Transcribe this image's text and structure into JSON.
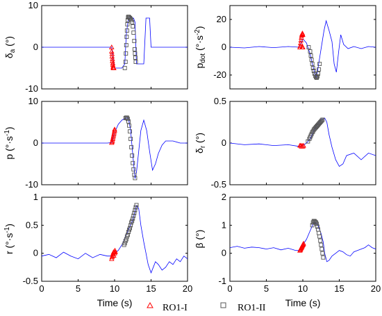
{
  "chart_data": [
    {
      "type": "line",
      "id": "delta_a",
      "ylabel": "δ_a (°)",
      "xlim": [
        0,
        20
      ],
      "ylim": [
        -10,
        10
      ],
      "xticks": [
        0,
        5,
        10,
        15,
        20
      ],
      "xtick_labels": [
        "",
        "",
        "",
        "",
        ""
      ],
      "yticks": [
        -10,
        0,
        10
      ],
      "ytick_labels": [
        "-10",
        "0",
        "10"
      ],
      "series": [
        {
          "style": "line",
          "color": "#0000ff",
          "x": [
            0,
            9.6,
            9.8,
            10.0,
            10.5,
            11.0,
            11.4,
            11.6,
            11.9,
            12.2,
            12.4,
            12.6,
            12.8,
            13.0,
            13.4,
            14.0,
            14.3,
            14.5,
            14.8,
            15.0,
            20
          ],
          "y": [
            0,
            0,
            -3,
            -5,
            -5,
            -5,
            -4,
            3,
            7,
            7,
            7,
            7,
            6,
            -4,
            -4,
            -4,
            7,
            7,
            7,
            0,
            0
          ]
        },
        {
          "name": "RO1-I",
          "style": "triangle",
          "color": "#ff0000",
          "x": [
            9.6,
            9.6,
            9.65,
            9.65,
            9.7,
            9.7,
            9.75,
            9.75,
            9.8,
            9.8,
            9.85,
            9.9
          ],
          "y": [
            0,
            -1,
            -1.6,
            -2.2,
            -2.8,
            -3.3,
            -3.8,
            -4.2,
            -4.6,
            -4.9,
            -5.0,
            -5.0
          ]
        },
        {
          "name": "RO1-II",
          "style": "square",
          "color": "#555555",
          "x": [
            11.4,
            11.5,
            11.55,
            11.6,
            11.65,
            11.7,
            11.75,
            11.8,
            11.85,
            11.9,
            12.0,
            12.1,
            12.2,
            12.3,
            12.4,
            12.5,
            12.6,
            12.7,
            12.75,
            12.8,
            12.85,
            12.9
          ],
          "y": [
            -5,
            -3.5,
            -1.5,
            0.5,
            2.5,
            4,
            5.5,
            6.5,
            7.2,
            7.3,
            7.2,
            7.0,
            6.8,
            6.5,
            6.0,
            5.0,
            3.5,
            1.5,
            -0.5,
            -1.5,
            -2.5,
            -3.5
          ]
        }
      ]
    },
    {
      "type": "line",
      "id": "p_dot",
      "ylabel": "p_dot (°·s^-2)",
      "xlim": [
        0,
        20
      ],
      "ylim": [
        -30,
        30
      ],
      "xticks": [
        0,
        5,
        10,
        15,
        20
      ],
      "xtick_labels": [
        "",
        "",
        "",
        "",
        ""
      ],
      "yticks": [
        -20,
        0,
        20
      ],
      "ytick_labels": [
        "-20",
        "0",
        "20"
      ],
      "series": [
        {
          "style": "line",
          "color": "#0000ff",
          "x": [
            0,
            2,
            4,
            6,
            8,
            9.5,
            10.0,
            10.5,
            11.0,
            11.5,
            11.8,
            12.0,
            12.3,
            12.6,
            12.9,
            13.2,
            13.6,
            14.0,
            14.3,
            14.6,
            14.9,
            15.2,
            15.6,
            16.2,
            17,
            18,
            19,
            20
          ],
          "y": [
            0,
            -0.5,
            0.5,
            -0.3,
            0.5,
            0,
            6,
            3,
            -5,
            -16,
            -22,
            -18,
            -8,
            2,
            12,
            19,
            12,
            4,
            -12,
            -18,
            -4,
            9,
            2,
            -1,
            0.5,
            -1,
            0.5,
            0
          ]
        },
        {
          "name": "RO1-I",
          "style": "triangle",
          "color": "#ff0000",
          "x": [
            9.6,
            9.65,
            9.7,
            9.75,
            9.8,
            9.85,
            9.9,
            9.95,
            10.0,
            10.0,
            9.9
          ],
          "y": [
            0,
            1,
            3,
            5,
            7,
            8.5,
            9.5,
            10,
            9,
            0,
            0
          ]
        },
        {
          "name": "RO1-II",
          "style": "square",
          "color": "#555555",
          "x": [
            10.8,
            11.0,
            11.1,
            11.2,
            11.3,
            11.4,
            11.5,
            11.6,
            11.7,
            11.8,
            11.9,
            12.0,
            12.1,
            12.2,
            12.3
          ],
          "y": [
            0,
            -3,
            -6,
            -9,
            -12,
            -15,
            -17,
            -19,
            -20.5,
            -21.5,
            -22,
            -21,
            -19,
            -16,
            -12
          ]
        }
      ]
    },
    {
      "type": "line",
      "id": "p",
      "ylabel": "p (°·s^-1)",
      "xlim": [
        0,
        20
      ],
      "ylim": [
        -10,
        10
      ],
      "xticks": [
        0,
        5,
        10,
        15,
        20
      ],
      "xtick_labels": [
        "",
        "",
        "",
        "",
        ""
      ],
      "yticks": [
        -10,
        0,
        10
      ],
      "ytick_labels": [
        "-10",
        "0",
        "10"
      ],
      "series": [
        {
          "style": "line",
          "color": "#0000ff",
          "x": [
            0,
            3,
            6,
            9,
            9.6,
            10.0,
            10.5,
            11.0,
            11.5,
            11.9,
            12.2,
            12.5,
            12.8,
            13.0,
            13.3,
            13.6,
            14.0,
            14.4,
            14.8,
            15.2,
            15.6,
            16.0,
            16.5,
            17,
            18,
            19,
            20
          ],
          "y": [
            0,
            0,
            0,
            0,
            0.1,
            2.5,
            4.5,
            5.5,
            6,
            6,
            3,
            -3,
            -8.5,
            -7,
            -2,
            3,
            5.5,
            3,
            -2,
            -6.5,
            -5,
            -2.5,
            -0.5,
            0.5,
            0.5,
            0,
            0
          ]
        },
        {
          "name": "RO1-I",
          "style": "triangle",
          "color": "#ff0000",
          "x": [
            9.6,
            9.65,
            9.7,
            9.75,
            9.8,
            9.85,
            9.9,
            9.95,
            10.0,
            10.0
          ],
          "y": [
            0.1,
            0.3,
            0.6,
            1.0,
            1.4,
            1.8,
            2.2,
            2.6,
            3.0,
            3.3
          ]
        },
        {
          "name": "RO1-II",
          "style": "square",
          "color": "#555555",
          "x": [
            11.5,
            11.6,
            11.7,
            11.8,
            11.9,
            12.0,
            12.1,
            12.2,
            12.3,
            12.4,
            12.5,
            12.6,
            12.7,
            12.8
          ],
          "y": [
            6,
            6.1,
            6.1,
            5.8,
            5.2,
            4.2,
            2.8,
            1.0,
            -1.0,
            -3.0,
            -4.8,
            -6.3,
            -7.6,
            -8.4
          ]
        }
      ]
    },
    {
      "type": "line",
      "id": "delta_r",
      "ylabel": "δ_r (°)",
      "xlim": [
        0,
        20
      ],
      "ylim": [
        -0.5,
        0.5
      ],
      "xticks": [
        0,
        5,
        10,
        15,
        20
      ],
      "xtick_labels": [
        "",
        "",
        "",
        "",
        ""
      ],
      "yticks": [
        -0.5,
        0,
        0.5
      ],
      "ytick_labels": [
        "-0.5",
        "0",
        "0.5"
      ],
      "series": [
        {
          "style": "line",
          "color": "#0000ff",
          "x": [
            0,
            2,
            4,
            6,
            8,
            9.5,
            10.0,
            10.5,
            11.0,
            11.5,
            12.0,
            12.5,
            13.0,
            13.3,
            13.6,
            14.0,
            14.5,
            15.0,
            15.5,
            16.0,
            17.0,
            18.0,
            19.0,
            20.0
          ],
          "y": [
            0,
            -0.02,
            -0.01,
            -0.03,
            -0.02,
            -0.04,
            -0.03,
            0.0,
            0.05,
            0.15,
            0.22,
            0.28,
            0.3,
            0.25,
            0.1,
            -0.05,
            -0.2,
            -0.28,
            -0.25,
            -0.15,
            -0.12,
            -0.2,
            -0.12,
            -0.15
          ]
        },
        {
          "name": "RO1-I",
          "style": "triangle",
          "color": "#ff0000",
          "x": [
            9.6,
            9.7,
            9.8,
            9.9,
            10.0,
            10.1
          ],
          "y": [
            -0.03,
            -0.03,
            -0.04,
            -0.03,
            -0.04,
            -0.03
          ]
        },
        {
          "name": "RO1-II",
          "style": "square",
          "color": "#555555",
          "x": [
            10.7,
            10.9,
            11.0,
            11.1,
            11.2,
            11.3,
            11.4,
            11.5,
            11.6,
            11.7,
            11.8,
            11.9,
            12.0,
            12.1,
            12.2,
            12.3,
            12.4,
            12.5,
            12.6,
            12.7
          ],
          "y": [
            0.02,
            0.05,
            0.07,
            0.09,
            0.11,
            0.13,
            0.14,
            0.16,
            0.17,
            0.18,
            0.19,
            0.2,
            0.21,
            0.22,
            0.23,
            0.24,
            0.25,
            0.26,
            0.27,
            0.28
          ]
        }
      ]
    },
    {
      "type": "line",
      "id": "r",
      "ylabel": "r (°·s^-1)",
      "xlabel": "Time (s)",
      "xlim": [
        0,
        20
      ],
      "ylim": [
        -0.5,
        1
      ],
      "xticks": [
        0,
        5,
        10,
        15,
        20
      ],
      "xtick_labels": [
        "0",
        "5",
        "10",
        "15",
        "20"
      ],
      "yticks": [
        -0.5,
        0,
        0.5,
        1
      ],
      "ytick_labels": [
        "-0.5",
        "0",
        "0.5",
        "1"
      ],
      "series": [
        {
          "style": "line",
          "color": "#0000ff",
          "x": [
            0,
            1,
            2,
            3,
            4,
            5,
            6,
            7,
            8,
            9,
            9.6,
            10.0,
            10.5,
            11.0,
            11.5,
            12.0,
            12.5,
            13.0,
            13.3,
            13.6,
            14.0,
            14.3,
            14.6,
            15.0,
            15.3,
            15.6,
            16.0,
            16.5,
            17.0,
            17.5,
            18.0,
            18.5,
            19.0,
            19.5,
            20.0
          ],
          "y": [
            -0.05,
            -0.02,
            -0.08,
            0.02,
            -0.05,
            -0.1,
            0.0,
            -0.08,
            -0.02,
            -0.05,
            -0.05,
            0.0,
            0.05,
            0.15,
            0.3,
            0.45,
            0.6,
            0.85,
            0.8,
            0.5,
            0.2,
            0.0,
            -0.2,
            -0.35,
            -0.25,
            -0.15,
            -0.2,
            -0.3,
            -0.25,
            -0.15,
            -0.2,
            -0.1,
            -0.15,
            -0.05,
            -0.1
          ]
        },
        {
          "name": "RO1-I",
          "style": "triangle",
          "color": "#ff0000",
          "x": [
            9.6,
            9.65,
            9.7,
            9.75,
            9.8,
            9.85,
            9.9,
            9.95,
            10.0,
            10.05,
            10.1
          ],
          "y": [
            -0.1,
            -0.07,
            -0.05,
            -0.02,
            0.0,
            0.02,
            -0.04,
            0.03,
            0.0,
            0.05,
            0.02
          ]
        },
        {
          "name": "RO1-II",
          "style": "square",
          "color": "#555555",
          "x": [
            11.3,
            11.4,
            11.5,
            11.6,
            11.7,
            11.8,
            11.9,
            12.0,
            12.1,
            12.2,
            12.3,
            12.4,
            12.5,
            12.6,
            12.7,
            12.8,
            12.9,
            13.0
          ],
          "y": [
            0.15,
            0.18,
            0.22,
            0.25,
            0.3,
            0.33,
            0.38,
            0.42,
            0.45,
            0.5,
            0.55,
            0.58,
            0.62,
            0.67,
            0.72,
            0.77,
            0.82,
            0.86
          ]
        }
      ]
    },
    {
      "type": "line",
      "id": "beta",
      "ylabel": "β (°)",
      "xlabel": "Time (s)",
      "xlim": [
        0,
        20
      ],
      "ylim": [
        -1,
        2
      ],
      "xticks": [
        0,
        5,
        10,
        15,
        20
      ],
      "xtick_labels": [
        "0",
        "5",
        "10",
        "15",
        "20"
      ],
      "yticks": [
        -1,
        0,
        1,
        2
      ],
      "ytick_labels": [
        "-1",
        "0",
        "1",
        "2"
      ],
      "series": [
        {
          "style": "line",
          "color": "#0000ff",
          "x": [
            0,
            1,
            2,
            3,
            4,
            5,
            6,
            7,
            8,
            9,
            9.6,
            10.0,
            10.5,
            11.0,
            11.5,
            12.0,
            12.5,
            12.8,
            13.0,
            13.3,
            13.6,
            14.0,
            14.5,
            15.0,
            15.5,
            16.0,
            16.5,
            17.0,
            17.5,
            18.0,
            18.5,
            19.0,
            19.5,
            20.0
          ],
          "y": [
            0.2,
            0.25,
            0.18,
            0.22,
            0.2,
            0.15,
            0.2,
            0.12,
            0.18,
            0.1,
            0.1,
            0.3,
            0.5,
            0.8,
            1.1,
            1.05,
            0.7,
            0.4,
            0.0,
            -0.3,
            -0.25,
            -0.1,
            0.0,
            0.1,
            0.05,
            -0.05,
            -0.1,
            0.05,
            0.1,
            0.15,
            0.2,
            0.3,
            0.2,
            0.15
          ]
        },
        {
          "name": "RO1-I",
          "style": "triangle",
          "color": "#ff0000",
          "x": [
            9.6,
            9.65,
            9.7,
            9.75,
            9.8,
            9.85,
            9.9,
            9.95,
            10.0,
            10.05,
            10.1
          ],
          "y": [
            0.1,
            0.12,
            0.15,
            0.18,
            0.2,
            0.22,
            0.25,
            0.28,
            0.3,
            0.32,
            0.35
          ]
        },
        {
          "name": "RO1-II",
          "style": "square",
          "color": "#555555",
          "x": [
            11.3,
            11.4,
            11.5,
            11.6,
            11.7,
            11.8,
            11.9,
            12.0,
            12.1,
            12.2,
            12.3,
            12.4,
            12.5,
            12.6,
            12.7,
            12.8
          ],
          "y": [
            1.0,
            1.1,
            1.15,
            1.15,
            1.12,
            1.1,
            1.05,
            0.95,
            0.85,
            0.72,
            0.6,
            0.45,
            0.3,
            0.15,
            0.0,
            -0.15
          ]
        }
      ]
    }
  ],
  "legend": {
    "entries": [
      {
        "label": "RO1-I",
        "marker": "triangle",
        "color": "#ff0000"
      },
      {
        "label": "RO1-II",
        "marker": "square",
        "color": "#555555"
      }
    ]
  }
}
